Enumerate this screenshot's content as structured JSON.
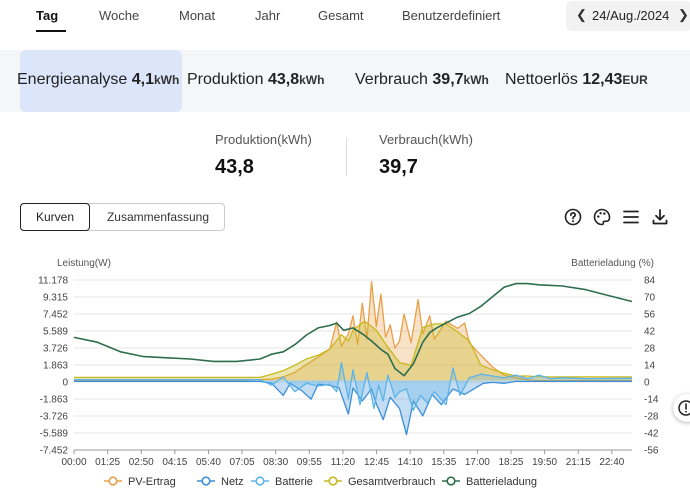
{
  "tabs": [
    {
      "label": "Tag"
    },
    {
      "label": "Woche"
    },
    {
      "label": "Monat"
    },
    {
      "label": "Jahr"
    },
    {
      "label": "Gesamt"
    },
    {
      "label": "Benutzerdefiniert"
    }
  ],
  "date": {
    "label": "24/Aug./2024"
  },
  "summary": [
    {
      "label": "Energieanalyse",
      "value": "4,1",
      "unit": "kWh"
    },
    {
      "label": "Produktion",
      "value": "43,8",
      "unit": "kWh"
    },
    {
      "label": "Verbrauch",
      "value": "39,7",
      "unit": "kWh"
    },
    {
      "label": "Nettoerlös",
      "value": "12,43",
      "unit": "EUR"
    }
  ],
  "totals": {
    "production_label": "Produktion(kWh)",
    "production_value": "43,8",
    "consumption_label": "Verbrauch(kWh)",
    "consumption_value": "39,7"
  },
  "view_toggle": {
    "curves": "Kurven",
    "summary": "Zusammenfassung"
  },
  "toolbar_icons": [
    "help-icon",
    "palette-icon",
    "menu-icon",
    "download-icon"
  ],
  "colors": {
    "pv": "#e8a048",
    "grid": "#3d8fd8",
    "battery": "#5db4e8",
    "consumption": "#c8b820",
    "soc": "#2e6e4e"
  },
  "chart_data": {
    "type": "area",
    "ylabel": "Leistung(W)",
    "y2label": "Batterieladung (%)",
    "y_ticks": [
      "11.178",
      "9.315",
      "7.452",
      "5.589",
      "3.726",
      "1.863",
      "0",
      "-1.863",
      "-3.726",
      "-5.589",
      "-7.452"
    ],
    "y2_ticks": [
      "84",
      "70",
      "56",
      "42",
      "28",
      "14",
      "0",
      "-14",
      "-28",
      "-42",
      "-56"
    ],
    "x_ticks": [
      "00:00",
      "01:25",
      "02:50",
      "04:15",
      "05:40",
      "07:05",
      "08:30",
      "09:55",
      "11:20",
      "12:45",
      "14:10",
      "15:35",
      "17:00",
      "18:25",
      "19:50",
      "21:15",
      "22:40"
    ],
    "ylim": [
      -7452,
      11178
    ],
    "y2lim": [
      -56,
      84
    ],
    "xlim_hours": [
      0,
      24
    ],
    "legend": [
      "PV-Ertrag",
      "Netz",
      "Batterie",
      "Gesamtverbrauch",
      "Batterieladung"
    ],
    "series": [
      {
        "name": "PV-Ertrag",
        "axis": "left",
        "points": [
          [
            0,
            0
          ],
          [
            7.0,
            0
          ],
          [
            8.5,
            150
          ],
          [
            9.0,
            400
          ],
          [
            9.5,
            900
          ],
          [
            10.0,
            1800
          ],
          [
            10.5,
            2600
          ],
          [
            11.0,
            3500
          ],
          [
            11.3,
            6500
          ],
          [
            11.5,
            3800
          ],
          [
            11.8,
            5200
          ],
          [
            12.0,
            7200
          ],
          [
            12.2,
            4000
          ],
          [
            12.4,
            8600
          ],
          [
            12.6,
            4600
          ],
          [
            12.8,
            11000
          ],
          [
            13.0,
            6000
          ],
          [
            13.2,
            9600
          ],
          [
            13.4,
            4800
          ],
          [
            13.6,
            6200
          ],
          [
            13.8,
            3600
          ],
          [
            14.0,
            4400
          ],
          [
            14.2,
            7400
          ],
          [
            14.5,
            4200
          ],
          [
            14.8,
            9000
          ],
          [
            15.0,
            5200
          ],
          [
            15.3,
            7200
          ],
          [
            15.5,
            4600
          ],
          [
            16.0,
            6600
          ],
          [
            16.5,
            5800
          ],
          [
            16.8,
            6400
          ],
          [
            17.0,
            4200
          ],
          [
            17.5,
            2800
          ],
          [
            18.0,
            1500
          ],
          [
            18.5,
            600
          ],
          [
            19.0,
            300
          ],
          [
            19.5,
            80
          ],
          [
            20.0,
            0
          ],
          [
            24,
            0
          ]
        ]
      },
      {
        "name": "Netz",
        "axis": "left",
        "points": [
          [
            0,
            -100
          ],
          [
            8.0,
            -100
          ],
          [
            8.5,
            -300
          ],
          [
            9.0,
            -1600
          ],
          [
            9.3,
            -300
          ],
          [
            9.8,
            -1100
          ],
          [
            10.2,
            -2000
          ],
          [
            10.5,
            -400
          ],
          [
            11.0,
            -500
          ],
          [
            11.4,
            -800
          ],
          [
            11.8,
            -3600
          ],
          [
            12.0,
            -800
          ],
          [
            12.4,
            -2200
          ],
          [
            12.8,
            -900
          ],
          [
            13.0,
            -2500
          ],
          [
            13.3,
            -4200
          ],
          [
            13.6,
            -1800
          ],
          [
            14.0,
            -3000
          ],
          [
            14.3,
            -5800
          ],
          [
            14.6,
            -2200
          ],
          [
            15.0,
            -3800
          ],
          [
            15.4,
            -1500
          ],
          [
            15.8,
            -2600
          ],
          [
            16.3,
            -900
          ],
          [
            16.8,
            -1500
          ],
          [
            17.2,
            -900
          ],
          [
            17.6,
            -300
          ],
          [
            18.0,
            -200
          ],
          [
            18.5,
            -300
          ],
          [
            19.0,
            -100
          ],
          [
            24,
            -100
          ]
        ]
      },
      {
        "name": "Batterie",
        "axis": "left",
        "points": [
          [
            0,
            100
          ],
          [
            8.0,
            100
          ],
          [
            8.5,
            -500
          ],
          [
            9.0,
            400
          ],
          [
            9.5,
            -1200
          ],
          [
            10.0,
            -300
          ],
          [
            10.5,
            -600
          ],
          [
            11.0,
            -400
          ],
          [
            11.3,
            -1200
          ],
          [
            11.5,
            2000
          ],
          [
            11.8,
            -2000
          ],
          [
            12.0,
            1200
          ],
          [
            12.3,
            -2600
          ],
          [
            12.6,
            900
          ],
          [
            12.9,
            -3000
          ],
          [
            13.1,
            -500
          ],
          [
            13.3,
            -2200
          ],
          [
            13.5,
            600
          ],
          [
            13.8,
            -1800
          ],
          [
            14.0,
            -1200
          ],
          [
            14.3,
            -900
          ],
          [
            14.6,
            -3200
          ],
          [
            14.9,
            -1600
          ],
          [
            15.2,
            -2400
          ],
          [
            15.5,
            -1200
          ],
          [
            16.0,
            -2600
          ],
          [
            16.3,
            1400
          ],
          [
            16.6,
            -1600
          ],
          [
            17.0,
            300
          ],
          [
            17.5,
            700
          ],
          [
            18.0,
            500
          ],
          [
            18.5,
            300
          ],
          [
            19.0,
            600
          ],
          [
            19.5,
            200
          ],
          [
            20.0,
            600
          ],
          [
            20.5,
            200
          ],
          [
            21.0,
            300
          ],
          [
            22.0,
            200
          ],
          [
            24,
            250
          ]
        ]
      },
      {
        "name": "Gesamtverbrauch",
        "axis": "left",
        "points": [
          [
            0,
            350
          ],
          [
            8.0,
            350
          ],
          [
            8.5,
            700
          ],
          [
            9.0,
            1100
          ],
          [
            9.5,
            1700
          ],
          [
            10.0,
            2400
          ],
          [
            10.5,
            2800
          ],
          [
            11.0,
            3500
          ],
          [
            11.5,
            5100
          ],
          [
            11.8,
            4400
          ],
          [
            12.0,
            5600
          ],
          [
            12.5,
            6600
          ],
          [
            13.0,
            5600
          ],
          [
            13.5,
            3700
          ],
          [
            14.0,
            2000
          ],
          [
            14.5,
            1700
          ],
          [
            15.0,
            5900
          ],
          [
            15.5,
            6300
          ],
          [
            16.0,
            6300
          ],
          [
            16.5,
            5400
          ],
          [
            17.0,
            4400
          ],
          [
            17.5,
            1700
          ],
          [
            18.0,
            1200
          ],
          [
            18.5,
            800
          ],
          [
            19.0,
            500
          ],
          [
            19.5,
            500
          ],
          [
            20.0,
            400
          ],
          [
            24,
            400
          ]
        ]
      },
      {
        "name": "Batterieladung",
        "axis": "right",
        "points": [
          [
            0,
            36
          ],
          [
            1.0,
            32
          ],
          [
            2.0,
            24
          ],
          [
            3.0,
            20
          ],
          [
            4.0,
            19
          ],
          [
            5.0,
            18
          ],
          [
            6.0,
            16
          ],
          [
            7.0,
            16
          ],
          [
            8.0,
            18
          ],
          [
            8.5,
            22
          ],
          [
            9.0,
            24
          ],
          [
            9.5,
            30
          ],
          [
            10.0,
            38
          ],
          [
            10.5,
            44
          ],
          [
            11.0,
            46
          ],
          [
            11.3,
            48
          ],
          [
            11.6,
            42
          ],
          [
            12.0,
            44
          ],
          [
            12.4,
            39
          ],
          [
            12.8,
            33
          ],
          [
            13.2,
            26
          ],
          [
            13.5,
            22
          ],
          [
            13.8,
            10
          ],
          [
            14.2,
            4
          ],
          [
            14.6,
            14
          ],
          [
            15.0,
            32
          ],
          [
            15.3,
            40
          ],
          [
            15.6,
            44
          ],
          [
            16.0,
            48
          ],
          [
            16.5,
            53
          ],
          [
            17.0,
            56
          ],
          [
            17.5,
            62
          ],
          [
            18.0,
            70
          ],
          [
            18.5,
            78
          ],
          [
            19.0,
            81
          ],
          [
            19.5,
            81
          ],
          [
            20.0,
            80
          ],
          [
            21.0,
            79
          ],
          [
            22.0,
            76
          ],
          [
            23.0,
            71
          ],
          [
            24,
            66
          ]
        ]
      }
    ]
  }
}
